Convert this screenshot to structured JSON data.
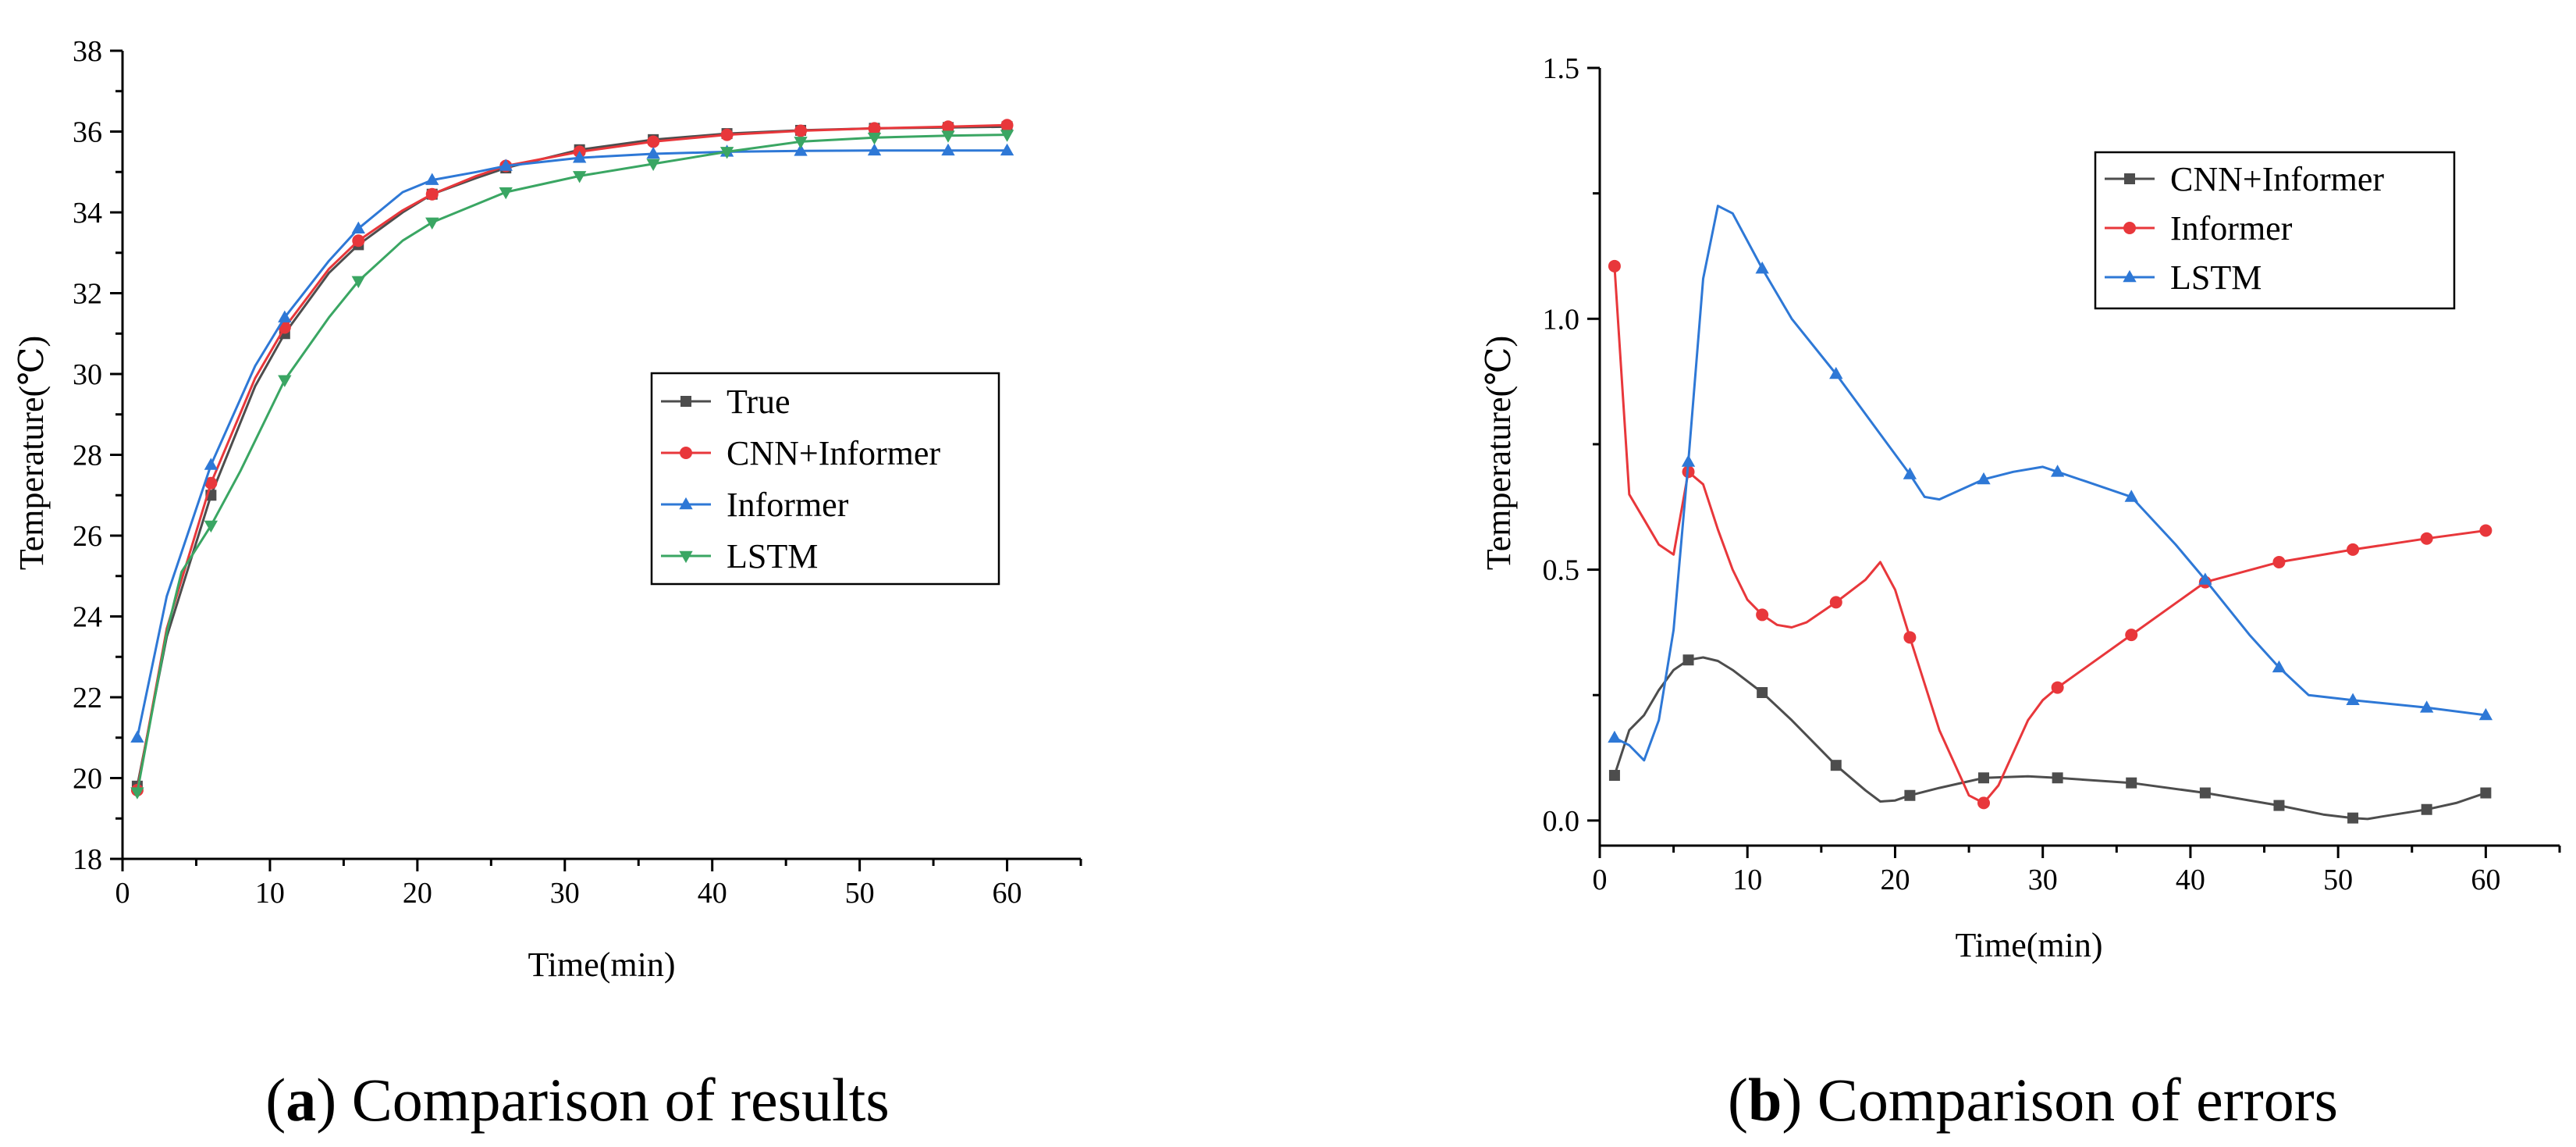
{
  "chart_data": [
    {
      "id": "a",
      "type": "line",
      "xlabel": "Time(min)",
      "ylabel": "Temperature(℃)",
      "xlim": [
        0,
        65
      ],
      "ylim": [
        18,
        38
      ],
      "xticks": [
        0,
        10,
        20,
        30,
        40,
        50,
        60
      ],
      "yticks": [
        18,
        20,
        22,
        24,
        26,
        28,
        30,
        32,
        34,
        36,
        38
      ],
      "legend_position": "center-right",
      "caption": {
        "letter": "a",
        "text": "Comparison of results"
      },
      "series": [
        {
          "name": "True",
          "color": "#4d4d4d",
          "marker": "square",
          "x": [
            1,
            6,
            11,
            16,
            21,
            26,
            31,
            36,
            41,
            46,
            51,
            56,
            60
          ],
          "y": [
            19.8,
            27.0,
            31.0,
            33.2,
            34.45,
            35.1,
            35.55,
            35.8,
            35.95,
            36.03,
            36.08,
            36.1,
            36.12
          ],
          "curve_x": [
            1,
            3,
            6,
            9,
            11,
            14,
            16,
            19,
            21,
            24,
            26,
            31,
            36,
            41,
            46,
            51,
            56,
            60
          ],
          "curve_y": [
            19.8,
            23.5,
            27.0,
            29.7,
            31.0,
            32.5,
            33.2,
            34.0,
            34.45,
            34.85,
            35.1,
            35.55,
            35.8,
            35.95,
            36.03,
            36.08,
            36.1,
            36.12
          ]
        },
        {
          "name": "CNN+Informer",
          "color": "#e8373b",
          "marker": "circle",
          "x": [
            1,
            6,
            11,
            16,
            21,
            26,
            31,
            36,
            41,
            46,
            51,
            56,
            60
          ],
          "y": [
            19.7,
            27.3,
            31.15,
            33.3,
            34.45,
            35.15,
            35.5,
            35.75,
            35.92,
            36.02,
            36.08,
            36.12,
            36.16
          ],
          "curve_x": [
            1,
            3,
            6,
            9,
            11,
            14,
            16,
            19,
            21,
            24,
            26,
            31,
            36,
            41,
            46,
            51,
            56,
            60
          ],
          "curve_y": [
            19.7,
            23.7,
            27.3,
            29.9,
            31.15,
            32.6,
            33.3,
            34.05,
            34.45,
            34.9,
            35.15,
            35.5,
            35.75,
            35.92,
            36.02,
            36.08,
            36.12,
            36.16
          ]
        },
        {
          "name": "Informer",
          "color": "#2e78d6",
          "marker": "triangle-up",
          "x": [
            1,
            6,
            11,
            16,
            21,
            26,
            31,
            36,
            41,
            46,
            51,
            56,
            60
          ],
          "y": [
            21.0,
            27.75,
            31.4,
            33.6,
            34.8,
            35.15,
            35.35,
            35.45,
            35.5,
            35.52,
            35.53,
            35.53,
            35.53
          ],
          "curve_x": [
            1,
            3,
            6,
            9,
            11,
            14,
            16,
            18,
            19,
            21,
            24,
            26,
            31,
            36,
            41,
            46,
            51,
            56,
            60
          ],
          "curve_y": [
            21.0,
            24.5,
            27.75,
            30.2,
            31.4,
            32.8,
            33.6,
            34.2,
            34.5,
            34.8,
            35.0,
            35.15,
            35.35,
            35.45,
            35.5,
            35.52,
            35.53,
            35.53,
            35.53
          ]
        },
        {
          "name": "LSTM",
          "color": "#3aa663",
          "marker": "triangle-down",
          "x": [
            1,
            6,
            11,
            16,
            21,
            26,
            31,
            36,
            41,
            46,
            51,
            56,
            60
          ],
          "y": [
            19.65,
            26.25,
            29.85,
            32.3,
            33.75,
            34.5,
            34.9,
            35.2,
            35.5,
            35.75,
            35.85,
            35.9,
            35.92
          ],
          "curve_x": [
            1,
            3,
            4,
            6,
            8,
            11,
            14,
            16,
            19,
            21,
            24,
            26,
            31,
            36,
            41,
            46,
            51,
            56,
            60
          ],
          "curve_y": [
            19.65,
            23.6,
            25.1,
            26.25,
            27.6,
            29.85,
            31.4,
            32.3,
            33.3,
            33.75,
            34.2,
            34.5,
            34.9,
            35.2,
            35.5,
            35.75,
            35.85,
            35.9,
            35.92
          ]
        }
      ]
    },
    {
      "id": "b",
      "type": "line",
      "xlabel": "Time(min)",
      "ylabel": "Temperature(℃)",
      "xlim": [
        0,
        65
      ],
      "ylim": [
        -0.05,
        1.5
      ],
      "xticks": [
        0,
        10,
        20,
        30,
        40,
        50,
        60
      ],
      "yticks": [
        0.0,
        0.5,
        1.0,
        1.5
      ],
      "ytick_labels": [
        "0.0",
        "0.5",
        "1.0",
        "1.5"
      ],
      "legend_position": "top-right",
      "caption": {
        "letter": "b",
        "text": "Comparison of errors"
      },
      "series": [
        {
          "name": "CNN+Informer",
          "color": "#4d4d4d",
          "marker": "square",
          "x": [
            1,
            6,
            11,
            16,
            21,
            26,
            31,
            36,
            41,
            46,
            51,
            56,
            60
          ],
          "y": [
            0.09,
            0.32,
            0.255,
            0.11,
            0.05,
            0.085,
            0.085,
            0.075,
            0.055,
            0.03,
            0.005,
            0.022,
            0.055
          ],
          "curve_x": [
            1,
            2,
            3,
            4,
            5,
            6,
            7,
            8,
            9,
            11,
            13,
            16,
            18,
            19,
            20,
            21,
            23,
            26,
            29,
            31,
            36,
            41,
            46,
            49,
            51,
            52,
            53,
            56,
            58,
            60
          ],
          "curve_y": [
            0.09,
            0.18,
            0.21,
            0.26,
            0.3,
            0.32,
            0.325,
            0.318,
            0.3,
            0.255,
            0.2,
            0.11,
            0.06,
            0.038,
            0.04,
            0.05,
            0.065,
            0.085,
            0.088,
            0.085,
            0.075,
            0.055,
            0.03,
            0.012,
            0.005,
            0.003,
            0.008,
            0.022,
            0.035,
            0.055
          ]
        },
        {
          "name": "Informer",
          "color": "#e8373b",
          "marker": "circle",
          "x": [
            1,
            6,
            11,
            16,
            21,
            26,
            31,
            36,
            41,
            46,
            51,
            56,
            60
          ],
          "y": [
            1.105,
            0.695,
            0.41,
            0.435,
            0.365,
            0.035,
            0.265,
            0.37,
            0.475,
            0.515,
            0.54,
            0.562,
            0.578
          ],
          "curve_x": [
            1,
            2,
            3,
            4,
            5,
            6,
            7,
            8,
            9,
            10,
            11,
            12,
            13,
            14,
            16,
            18,
            19,
            20,
            21,
            23,
            25,
            26,
            27,
            29,
            30,
            31,
            36,
            41,
            46,
            51,
            56,
            60
          ],
          "curve_y": [
            1.105,
            0.65,
            0.6,
            0.55,
            0.53,
            0.695,
            0.67,
            0.58,
            0.5,
            0.44,
            0.41,
            0.39,
            0.385,
            0.395,
            0.435,
            0.48,
            0.515,
            0.46,
            0.365,
            0.18,
            0.05,
            0.035,
            0.07,
            0.2,
            0.24,
            0.265,
            0.37,
            0.475,
            0.515,
            0.54,
            0.562,
            0.578
          ]
        },
        {
          "name": "LSTM",
          "color": "#2e78d6",
          "marker": "triangle-up",
          "x": [
            1,
            6,
            11,
            16,
            21,
            26,
            31,
            36,
            41,
            46,
            51,
            56,
            60
          ],
          "y": [
            0.165,
            0.715,
            1.1,
            0.89,
            0.69,
            0.68,
            0.695,
            0.645,
            0.48,
            0.305,
            0.24,
            0.225,
            0.21
          ],
          "curve_x": [
            1,
            2,
            3,
            4,
            5,
            6,
            7,
            8,
            9,
            11,
            13,
            16,
            19,
            21,
            22,
            23,
            26,
            28,
            30,
            31,
            33,
            36,
            39,
            41,
            44,
            46,
            48,
            51,
            56,
            60
          ],
          "curve_y": [
            0.165,
            0.15,
            0.12,
            0.2,
            0.38,
            0.715,
            1.08,
            1.225,
            1.21,
            1.1,
            1.0,
            0.89,
            0.77,
            0.69,
            0.645,
            0.64,
            0.68,
            0.695,
            0.705,
            0.695,
            0.675,
            0.645,
            0.55,
            0.48,
            0.37,
            0.305,
            0.25,
            0.24,
            0.225,
            0.21
          ]
        }
      ]
    }
  ]
}
